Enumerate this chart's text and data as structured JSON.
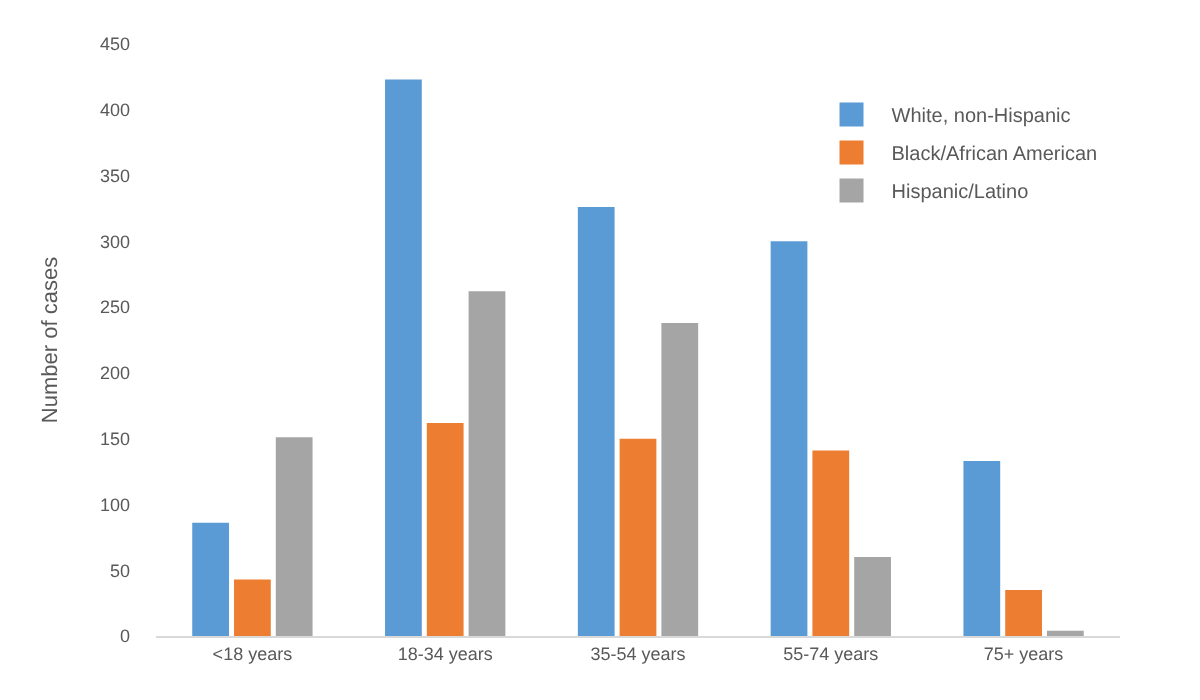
{
  "chart_data": {
    "type": "bar",
    "ylabel": "Number of cases",
    "categories": [
      "<18 years",
      "18-34 years",
      "35-54 years",
      "55-74 years",
      "75+ years"
    ],
    "series": [
      {
        "name": "White, non-Hispanic",
        "color": "#5b9bd5",
        "values": [
          86,
          423,
          326,
          300,
          133
        ]
      },
      {
        "name": "Black/African American",
        "color": "#ed7d31",
        "values": [
          43,
          162,
          150,
          141,
          35
        ]
      },
      {
        "name": "Hispanic/Latino",
        "color": "#a5a5a5",
        "values": [
          151,
          262,
          238,
          60,
          4
        ]
      }
    ],
    "ylim": [
      0,
      450
    ],
    "yticks": [
      0,
      50,
      100,
      150,
      200,
      250,
      300,
      350,
      400,
      450
    ],
    "grid": false,
    "legend": "top right"
  }
}
